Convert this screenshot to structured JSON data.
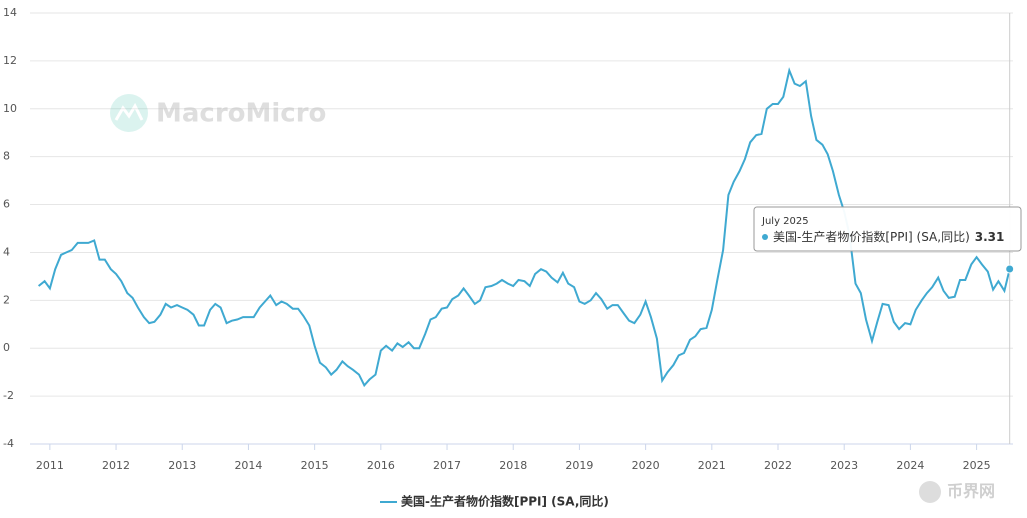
{
  "chart_data": {
    "type": "line",
    "series": [
      {
        "name": "美国-生产者物价指数[PPI] (SA,同比)",
        "color": "#3fa9d1",
        "values": [
          2.6,
          2.8,
          2.5,
          3.3,
          3.9,
          4.0,
          4.1,
          4.4,
          4.4,
          4.4,
          4.5,
          3.7,
          3.7,
          3.3,
          3.1,
          2.8,
          2.3,
          2.1,
          1.7,
          1.3,
          1.05,
          1.1,
          1.4,
          1.85,
          1.7,
          1.8,
          1.7,
          1.6,
          1.4,
          0.95,
          0.95,
          1.6,
          1.85,
          1.7,
          1.05,
          1.15,
          1.2,
          1.3,
          1.3,
          1.3,
          1.7,
          1.95,
          2.2,
          1.8,
          1.95,
          1.85,
          1.65,
          1.65,
          1.35,
          0.95,
          0.1,
          -0.6,
          -0.8,
          -1.1,
          -0.9,
          -0.55,
          -0.75,
          -0.9,
          -1.1,
          -1.55,
          -1.3,
          -1.1,
          -0.1,
          0.1,
          -0.1,
          0.2,
          0.05,
          0.25,
          0.0,
          0.0,
          0.6,
          1.2,
          1.3,
          1.65,
          1.7,
          2.05,
          2.2,
          2.5,
          2.2,
          1.85,
          2.0,
          2.55,
          2.6,
          2.7,
          2.85,
          2.7,
          2.6,
          2.85,
          2.8,
          2.6,
          3.1,
          3.3,
          3.2,
          2.95,
          2.75,
          3.15,
          2.7,
          2.55,
          1.95,
          1.85,
          2.0,
          2.3,
          2.05,
          1.65,
          1.8,
          1.8,
          1.45,
          1.15,
          1.05,
          1.4,
          1.95,
          1.3,
          0.4,
          -1.35,
          -1.0,
          -0.7,
          -0.3,
          -0.2,
          0.35,
          0.5,
          0.8,
          0.85,
          1.6,
          2.8,
          4.1,
          6.4,
          6.95,
          7.4,
          7.9,
          8.6,
          8.9,
          8.95,
          10.0,
          10.2,
          10.2,
          10.5,
          11.6,
          11.05,
          10.95,
          11.15,
          9.7,
          8.7,
          8.5,
          8.1,
          7.4,
          6.4,
          5.7,
          4.75,
          2.7,
          2.3,
          1.2,
          0.3,
          1.1,
          1.85,
          1.8,
          1.1,
          0.8,
          1.05,
          1.0,
          1.6,
          2.0,
          2.3,
          2.55,
          2.95,
          2.4,
          2.1,
          2.15,
          2.85,
          2.85,
          3.5,
          3.8,
          3.5,
          3.2,
          2.45,
          2.8,
          2.4,
          3.31
        ]
      }
    ],
    "x": [
      2010.83,
      2010.92,
      2011.0,
      2011.08,
      2011.17,
      2011.25,
      2011.33,
      2011.42,
      2011.5,
      2011.58,
      2011.67,
      2011.75,
      2011.83,
      2011.92,
      2012.0,
      2012.08,
      2012.17,
      2012.25,
      2012.33,
      2012.42,
      2012.5,
      2012.58,
      2012.67,
      2012.75,
      2012.83,
      2012.92,
      2013.0,
      2013.08,
      2013.17,
      2013.25,
      2013.33,
      2013.42,
      2013.5,
      2013.58,
      2013.67,
      2013.75,
      2013.83,
      2013.92,
      2014.0,
      2014.08,
      2014.17,
      2014.25,
      2014.33,
      2014.42,
      2014.5,
      2014.58,
      2014.67,
      2014.75,
      2014.83,
      2014.92,
      2015.0,
      2015.08,
      2015.17,
      2015.25,
      2015.33,
      2015.42,
      2015.5,
      2015.58,
      2015.67,
      2015.75,
      2015.83,
      2015.92,
      2016.0,
      2016.08,
      2016.17,
      2016.25,
      2016.33,
      2016.42,
      2016.5,
      2016.58,
      2016.67,
      2016.75,
      2016.83,
      2016.92,
      2017.0,
      2017.08,
      2017.17,
      2017.25,
      2017.33,
      2017.42,
      2017.5,
      2017.58,
      2017.67,
      2017.75,
      2017.83,
      2017.92,
      2018.0,
      2018.08,
      2018.17,
      2018.25,
      2018.33,
      2018.42,
      2018.5,
      2018.58,
      2018.67,
      2018.75,
      2018.83,
      2018.92,
      2019.0,
      2019.08,
      2019.17,
      2019.25,
      2019.33,
      2019.42,
      2019.5,
      2019.58,
      2019.67,
      2019.75,
      2019.83,
      2019.92,
      2020.0,
      2020.08,
      2020.17,
      2020.25,
      2020.33,
      2020.42,
      2020.5,
      2020.58,
      2020.67,
      2020.75,
      2020.83,
      2020.92,
      2021.0,
      2021.08,
      2021.17,
      2021.25,
      2021.33,
      2021.42,
      2021.5,
      2021.58,
      2021.67,
      2021.75,
      2021.83,
      2021.92,
      2022.0,
      2022.08,
      2022.17,
      2022.25,
      2022.33,
      2022.42,
      2022.5,
      2022.58,
      2022.67,
      2022.75,
      2022.83,
      2022.92,
      2023.0,
      2023.08,
      2023.17,
      2023.25,
      2023.33,
      2023.42,
      2023.5,
      2023.58,
      2023.67,
      2023.75,
      2023.83,
      2023.92,
      2024.0,
      2024.08,
      2024.17,
      2024.25,
      2024.33,
      2024.42,
      2024.5,
      2024.58,
      2024.67,
      2024.75,
      2024.83,
      2024.92,
      2025.0,
      2025.08,
      2025.17,
      2025.25,
      2025.33,
      2025.42,
      2025.5
    ],
    "xlim": [
      2010.7,
      2025.55
    ],
    "xticks": [
      2011,
      2012,
      2013,
      2014,
      2015,
      2016,
      2017,
      2018,
      2019,
      2020,
      2021,
      2022,
      2023,
      2024,
      2025
    ],
    "ylim": [
      -4,
      14
    ],
    "yticks": [
      -4,
      -2,
      0,
      2,
      4,
      6,
      8,
      10,
      12,
      14
    ],
    "grid": true,
    "tooltip": {
      "title": "July 2025"
    },
    "watermarks": [
      "MacroMicro",
      "币界网"
    ]
  }
}
